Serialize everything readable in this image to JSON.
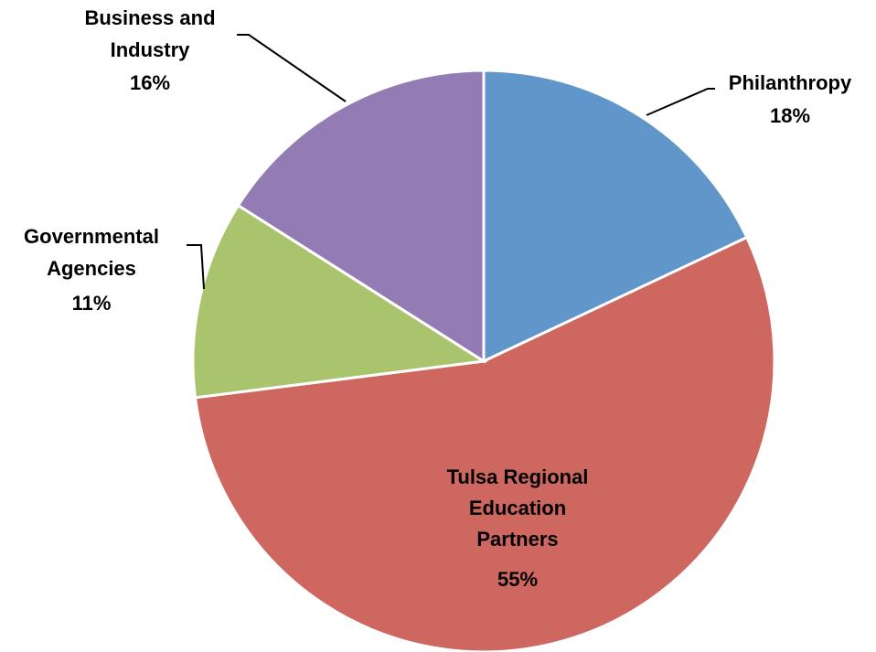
{
  "chart_data": {
    "type": "pie",
    "title": "",
    "start_angle_deg": 0,
    "direction": "clockwise",
    "slices": [
      {
        "label": "Philanthropy",
        "value": 18,
        "pct_label": "18%",
        "color": "#6096C9"
      },
      {
        "label": "Tulsa Regional Education Partners",
        "value": 55,
        "pct_label": "55%",
        "color": "#CD6760"
      },
      {
        "label": "Governmental Agencies",
        "value": 11,
        "pct_label": "11%",
        "color": "#AAC46E"
      },
      {
        "label": "Business and Industry",
        "value": 16,
        "pct_label": "16%",
        "color": "#937CB3"
      }
    ]
  }
}
